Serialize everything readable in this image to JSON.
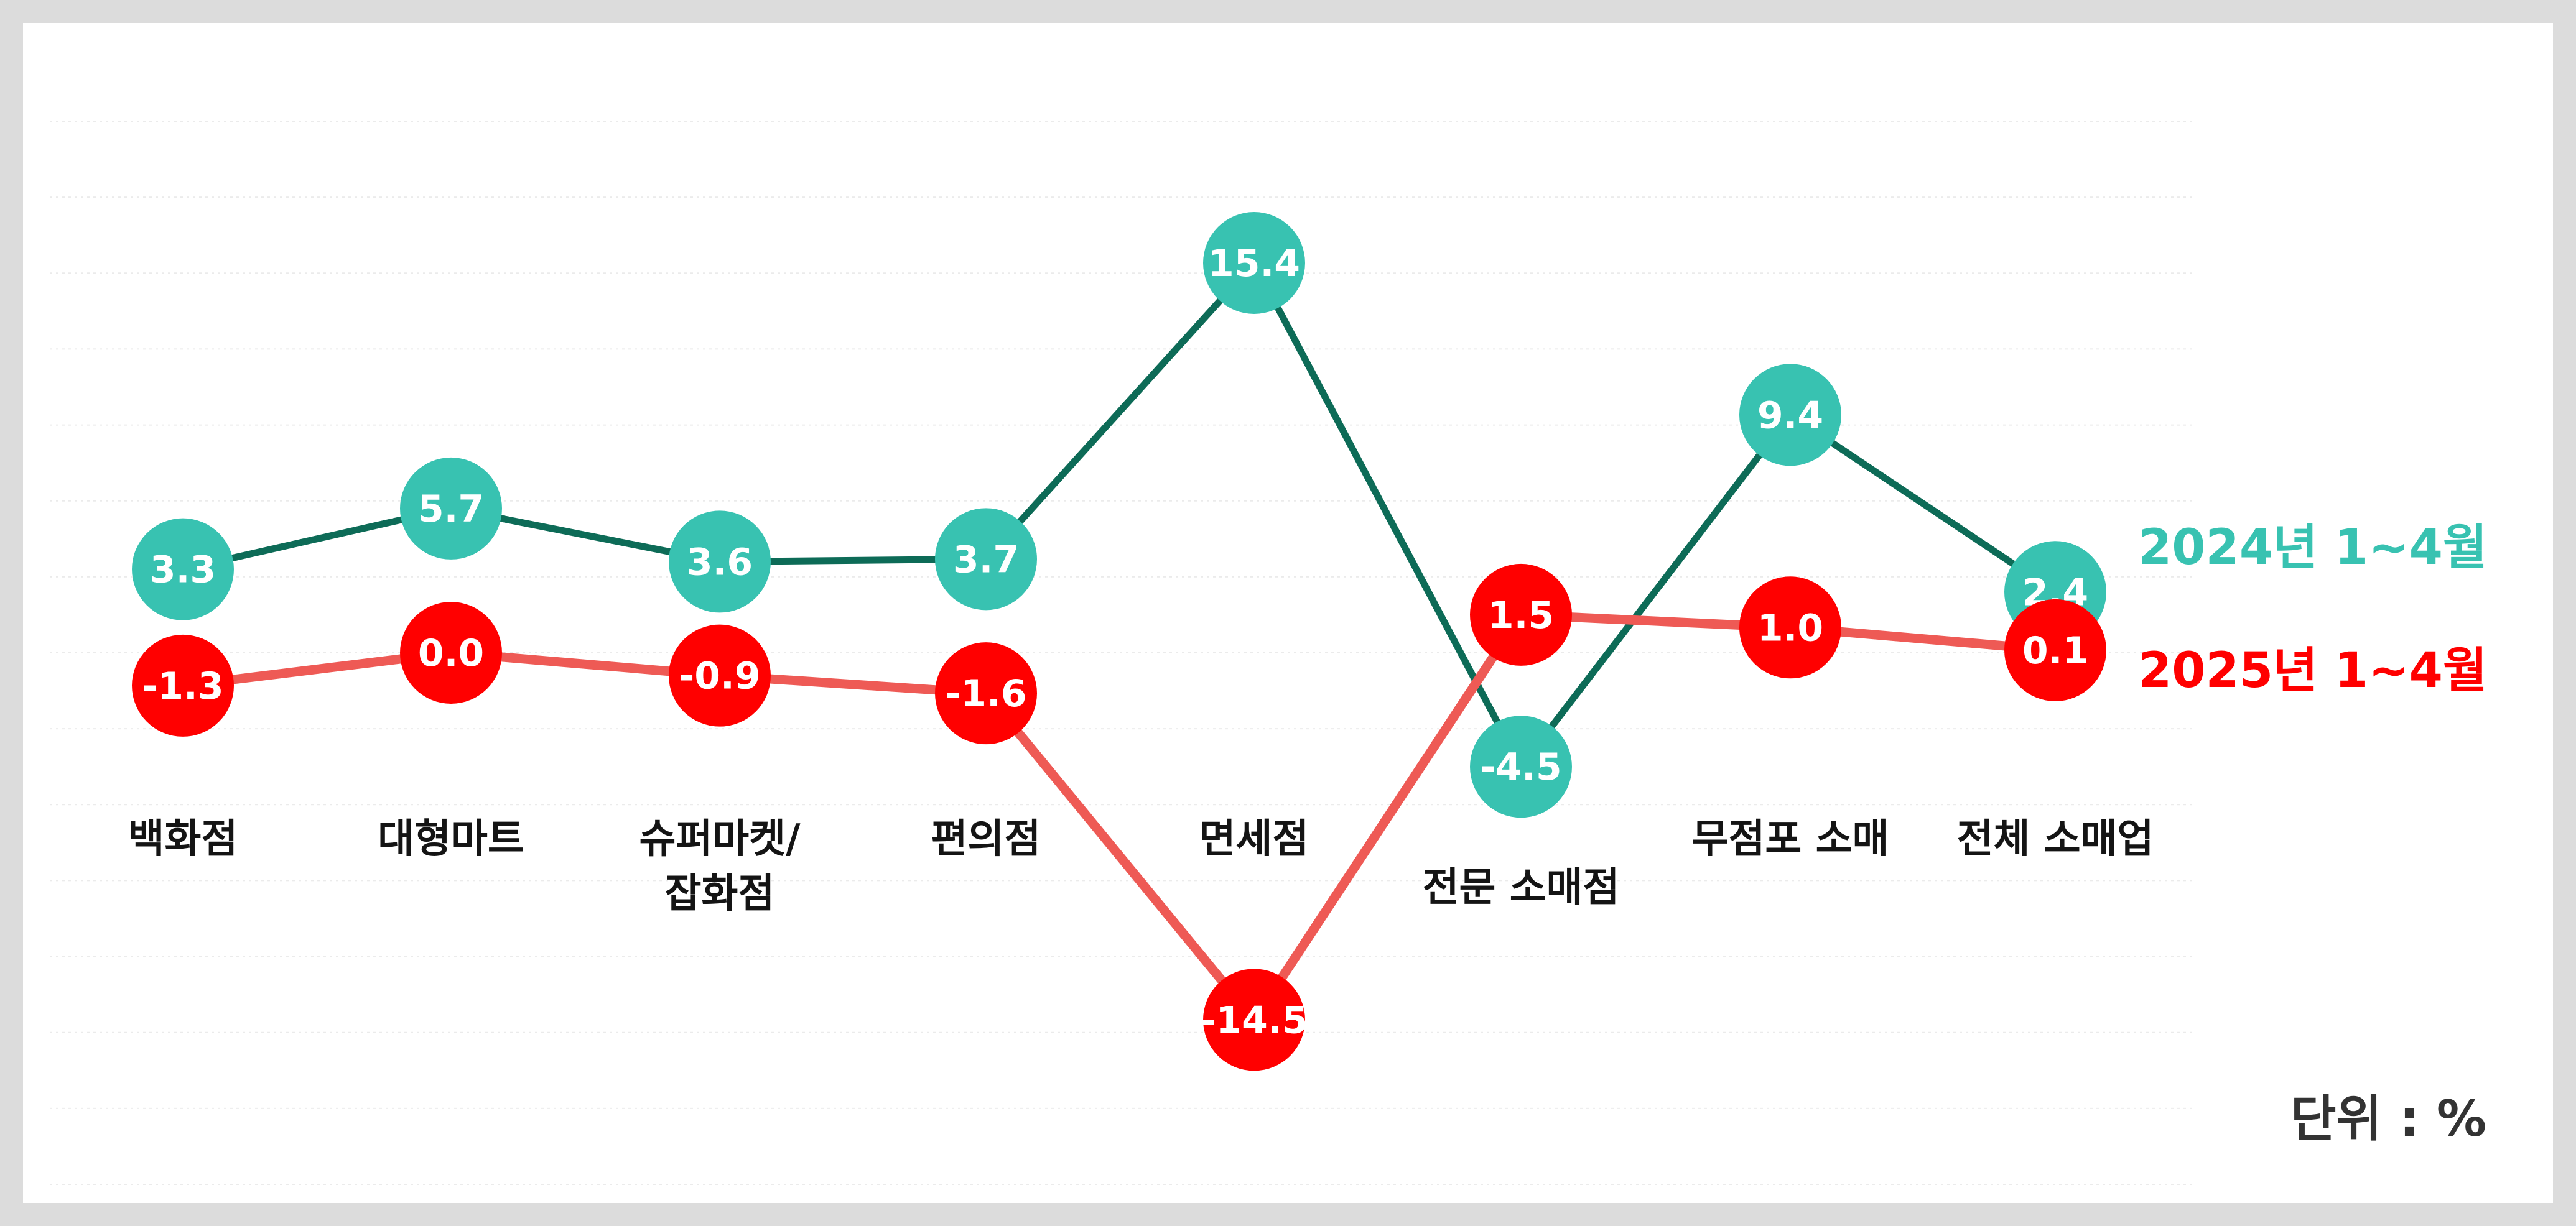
{
  "chart_data": {
    "type": "line",
    "categories": [
      [
        "백화점"
      ],
      [
        "대형마트"
      ],
      [
        "슈퍼마켓/",
        "잡화점"
      ],
      [
        "편의점"
      ],
      [
        "면세점"
      ],
      [
        "전문 소매점"
      ],
      [
        "무점포 소매"
      ],
      [
        "전체 소매업"
      ]
    ],
    "series": [
      {
        "name": "2024년 1~4월",
        "values": [
          3.3,
          5.7,
          3.6,
          3.7,
          15.4,
          -4.5,
          9.4,
          2.4
        ],
        "line_color": "#0d6b57",
        "marker_color": "#38c2b1",
        "label_color": "#38c2b1"
      },
      {
        "name": "2025년 1~4월",
        "values": [
          -1.3,
          0.0,
          -0.9,
          -1.6,
          -14.5,
          1.5,
          1.0,
          0.1
        ],
        "line_color": "#ee5a55",
        "marker_color": "#ff0000",
        "label_color": "#ff0000"
      }
    ],
    "ylim": [
      -21,
      21
    ],
    "unit": "단위 : %",
    "grid": true,
    "legend_placement": "right"
  }
}
